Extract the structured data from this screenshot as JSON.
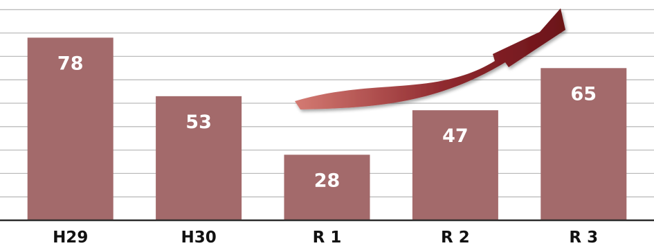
{
  "chart_data": {
    "type": "bar",
    "categories": [
      "H29",
      "H30",
      "R 1",
      "R 2",
      "R 3"
    ],
    "values": [
      78,
      53,
      28,
      47,
      65
    ],
    "title": "",
    "xlabel": "",
    "ylabel": "",
    "ylim": [
      0,
      100
    ],
    "grid": true,
    "legend": "none",
    "annotations": [
      {
        "type": "arrow",
        "from_category": "R 1",
        "to_category": "R 3",
        "direction": "up",
        "meaning": "upward trend"
      }
    ]
  },
  "colors": {
    "bar": "#a36a6b",
    "bar_label": "#ffffff",
    "grid": "#bcbcbc",
    "axis": "#2b2b2b",
    "arrow_light": "#d47b73",
    "arrow_dark": "#6b1218"
  }
}
